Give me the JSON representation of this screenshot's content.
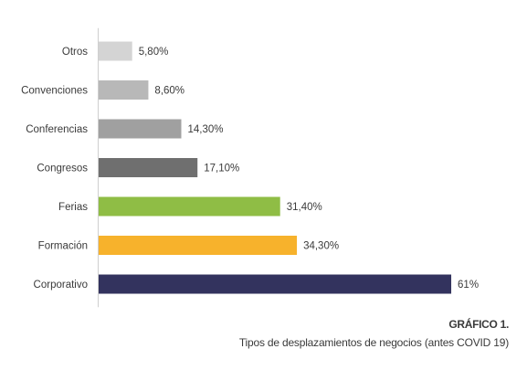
{
  "chart_data": {
    "type": "bar",
    "orientation": "horizontal",
    "categories": [
      "Otros",
      "Convenciones",
      "Conferencias",
      "Congresos",
      "Ferias",
      "Formación",
      "Corporativo"
    ],
    "values": [
      5.8,
      8.6,
      14.3,
      17.1,
      31.4,
      34.3,
      61
    ],
    "value_labels": [
      "5,80%",
      "8,60%",
      "14,30%",
      "17,10%",
      "31,40%",
      "34,30%",
      "61%"
    ],
    "colors": [
      "#d4d4d4",
      "#b8b8b8",
      "#a0a0a0",
      "#6f6f6f",
      "#8fbd45",
      "#f7b22c",
      "#33335e"
    ],
    "xlim": [
      0,
      70
    ],
    "grid": false,
    "legend": "none"
  },
  "caption": {
    "label": "GRÁFICO 1.",
    "title": "Tipos de desplazamientos de negocios (antes COVID 19)"
  }
}
